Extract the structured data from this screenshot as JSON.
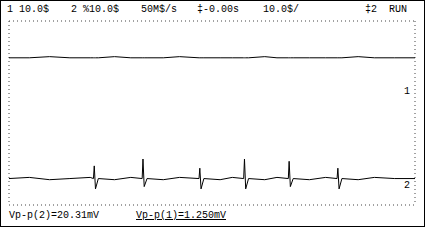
{
  "header": [
    "1  10.0$",
    "2 %10.0$",
    "50M$/s",
    "‡-0.00s",
    "10.0$/",
    "‡2",
    "RUN"
  ],
  "footer": [
    "Vp-p(2)=20.31mV",
    "Vp-p(1)=1.250mV"
  ],
  "chart_data": {
    "type": "line",
    "x": [
      0,
      0.5,
      1,
      1.5,
      2,
      2.08,
      2.1,
      2.13,
      2.2,
      2.6,
      3,
      3.28,
      3.3,
      3.33,
      3.4,
      3.8,
      4.2,
      4.68,
      4.7,
      4.73,
      4.8,
      5.2,
      5.5,
      5.78,
      5.8,
      5.83,
      5.9,
      6.3,
      6.6,
      6.88,
      6.9,
      6.93,
      7.0,
      7.4,
      7.8,
      8.08,
      8.1,
      8.13,
      8.2,
      8.6,
      9,
      9.5,
      10
    ],
    "series": [
      {
        "name": "1",
        "color": "#000000",
        "values": [
          2.4,
          2.4,
          2.45,
          2.4,
          2.4,
          2.4,
          2.4,
          2.4,
          2.4,
          2.45,
          2.4,
          2.4,
          2.4,
          2.4,
          2.4,
          2.4,
          2.45,
          2.4,
          2.4,
          2.4,
          2.4,
          2.4,
          2.4,
          2.4,
          2.4,
          2.4,
          2.4,
          2.45,
          2.4,
          2.4,
          2.4,
          2.4,
          2.4,
          2.4,
          2.4,
          2.4,
          2.4,
          2.4,
          2.4,
          2.45,
          2.4,
          2.4,
          2.4
        ]
      },
      {
        "name": "2",
        "color": "#000000",
        "values": [
          -2.85,
          -2.8,
          -2.9,
          -2.85,
          -2.8,
          -2.85,
          -2.3,
          -3.3,
          -2.85,
          -2.9,
          -2.8,
          -2.85,
          -2.0,
          -3.2,
          -2.85,
          -2.9,
          -2.8,
          -2.85,
          -2.4,
          -3.3,
          -2.85,
          -2.9,
          -2.8,
          -2.85,
          -2.0,
          -3.3,
          -2.85,
          -2.9,
          -2.8,
          -2.85,
          -2.1,
          -3.2,
          -2.85,
          -2.9,
          -2.8,
          -2.85,
          -2.4,
          -3.3,
          -2.85,
          -2.9,
          -2.8,
          -2.85,
          -2.85
        ]
      }
    ],
    "xlim": [
      0,
      10
    ],
    "xticks": [
      0,
      1,
      2,
      3,
      4,
      5,
      6,
      7,
      8,
      9,
      10
    ],
    "ylim": [
      -4,
      4
    ],
    "yticks": [
      -4,
      -3,
      -2,
      -1,
      0,
      1,
      2,
      3,
      4
    ],
    "grid": true,
    "tick_labels": false,
    "annotations": [
      {
        "text": "1",
        "x": 10,
        "y": 1.0
      },
      {
        "text": "2",
        "x": 10,
        "y": -3.1
      }
    ]
  }
}
